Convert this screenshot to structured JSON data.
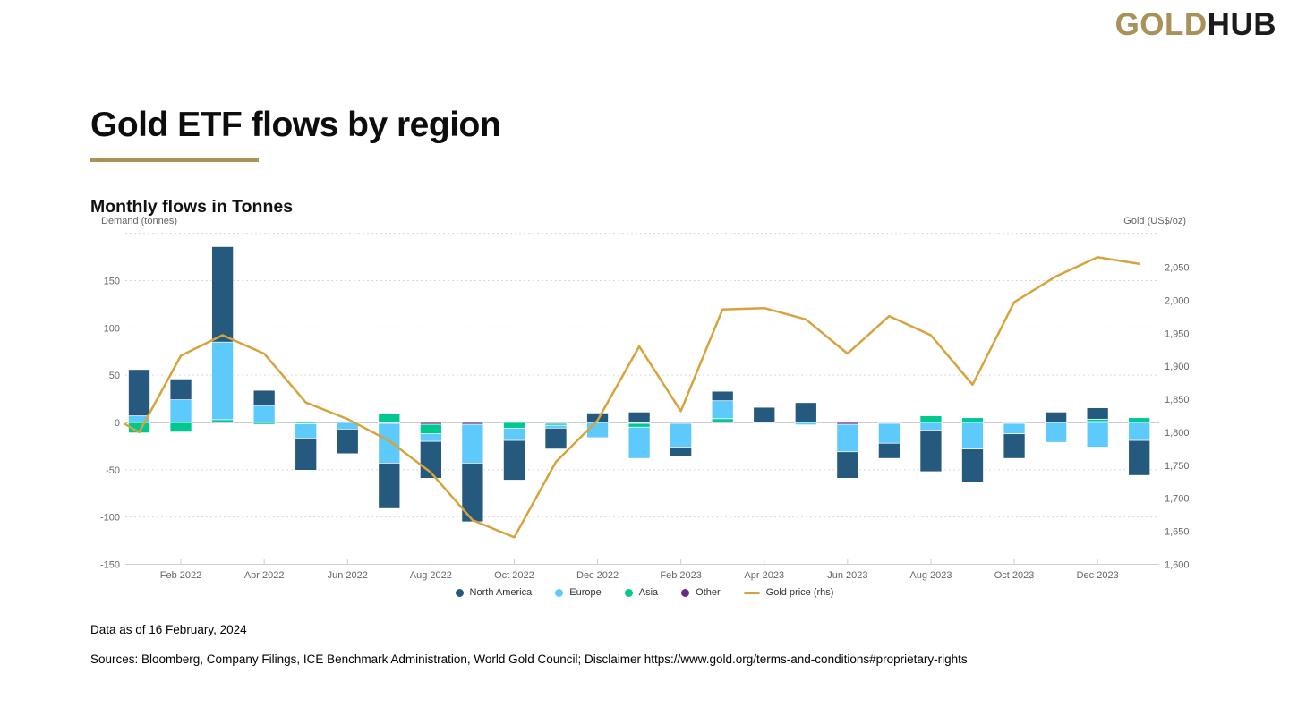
{
  "logo": {
    "gold": "GOLD",
    "hub": "HUB"
  },
  "page": {
    "title": "Gold ETF flows by region",
    "subtitle": "Monthly flows in Tonnes",
    "data_as_of": "Data as of 16 February, 2024",
    "sources": "Sources: Bloomberg, Company Filings, ICE Benchmark Administration, World Gold Council; Disclaimer https://www.gold.org/terms-and-conditions#proprietary-rights"
  },
  "colors": {
    "north_america": "#25597e",
    "europe": "#5ec9fb",
    "asia": "#00c98f",
    "other": "#6a2b87",
    "gold_line": "#d7a33c",
    "accent_gold": "#a8925a"
  },
  "chart_data": {
    "type": "bar",
    "subtype": "stacked-column-with-line",
    "left_axis": {
      "label": "Demand (tonnes)",
      "ticks": [
        150,
        100,
        50,
        0,
        -50,
        -100,
        -150
      ],
      "range": [
        -150,
        200
      ],
      "gridlines": [
        200,
        150,
        100,
        50,
        -50,
        -100
      ]
    },
    "right_axis": {
      "label": "Gold (US$/oz)",
      "ticks": [
        2050,
        2000,
        1950,
        1900,
        1850,
        1800,
        1750,
        1700,
        1650,
        1600
      ],
      "range": [
        1600,
        2100
      ]
    },
    "x_tick_labels": [
      "Feb 2022",
      "Apr 2022",
      "Jun 2022",
      "Aug 2022",
      "Oct 2022",
      "Dec 2022",
      "Feb 2023",
      "Apr 2023",
      "Jun 2023",
      "Aug 2023",
      "Oct 2023",
      "Dec 2023"
    ],
    "categories": [
      "Jan 2022",
      "Feb 2022",
      "Mar 2022",
      "Apr 2022",
      "May 2022",
      "Jun 2022",
      "Jul 2022",
      "Aug 2022",
      "Sep 2022",
      "Oct 2022",
      "Nov 2022",
      "Dec 2022",
      "Jan 2023",
      "Feb 2023",
      "Mar 2023",
      "Apr 2023",
      "May 2023",
      "Jun 2023",
      "Jul 2023",
      "Aug 2023",
      "Sep 2023",
      "Oct 2023",
      "Nov 2023",
      "Dec 2023",
      "Jan 2024"
    ],
    "series": [
      {
        "name": "North America",
        "color": "#25597e",
        "values": [
          49,
          22,
          101,
          16,
          -34,
          -26,
          -48,
          -39,
          -62,
          -42,
          -22,
          10,
          11,
          -10,
          10,
          16,
          21,
          -28,
          -16,
          -44,
          -35,
          -26,
          11,
          12,
          -37
        ]
      },
      {
        "name": "Europe",
        "color": "#5ec9fb",
        "values": [
          7,
          24,
          82,
          18,
          -15,
          -7,
          -42,
          -8,
          -41,
          -13,
          -3,
          -16,
          -33,
          -25,
          19,
          -1,
          -2.5,
          -29,
          -21,
          -8,
          -28,
          -11,
          -21,
          -26,
          -19
        ]
      },
      {
        "name": "Asia",
        "color": "#00c98f",
        "values": [
          -11,
          -10,
          3,
          -2,
          -1.5,
          0,
          9,
          -10,
          0,
          -6,
          -2,
          0,
          -4,
          0,
          4,
          0,
          0,
          0,
          1,
          7,
          5,
          1,
          0,
          2.5,
          5
        ]
      },
      {
        "name": "Other",
        "color": "#6a2b87",
        "values": [
          0,
          0,
          -1,
          0,
          0,
          0,
          -1,
          -2,
          -2,
          0,
          -1,
          0,
          -1,
          -1,
          -1,
          0,
          0,
          -2,
          -1,
          0,
          0,
          -1,
          0,
          1,
          0
        ]
      }
    ],
    "line_series": {
      "name": "Gold price (rhs)",
      "color": "#d7a33c",
      "axis": "right",
      "edge_start": 1812,
      "values": [
        1800,
        1916,
        1947,
        1919,
        1845,
        1820,
        1787,
        1739,
        1667,
        1641,
        1755,
        1818,
        1930,
        1832,
        1986,
        1988,
        1971,
        1919,
        1976,
        1947,
        1872,
        1997,
        2036,
        2065,
        2055
      ]
    },
    "legend": [
      {
        "label": "North America",
        "color": "#25597e",
        "marker": "circle"
      },
      {
        "label": "Europe",
        "color": "#5ec9fb",
        "marker": "circle"
      },
      {
        "label": "Asia",
        "color": "#00c98f",
        "marker": "circle"
      },
      {
        "label": "Other",
        "color": "#6a2b87",
        "marker": "circle"
      },
      {
        "label": "Gold price (rhs)",
        "color": "#d7a33c",
        "marker": "line"
      }
    ],
    "legend_position": "bottom-center",
    "grid": "dashed-horizontal-only"
  }
}
